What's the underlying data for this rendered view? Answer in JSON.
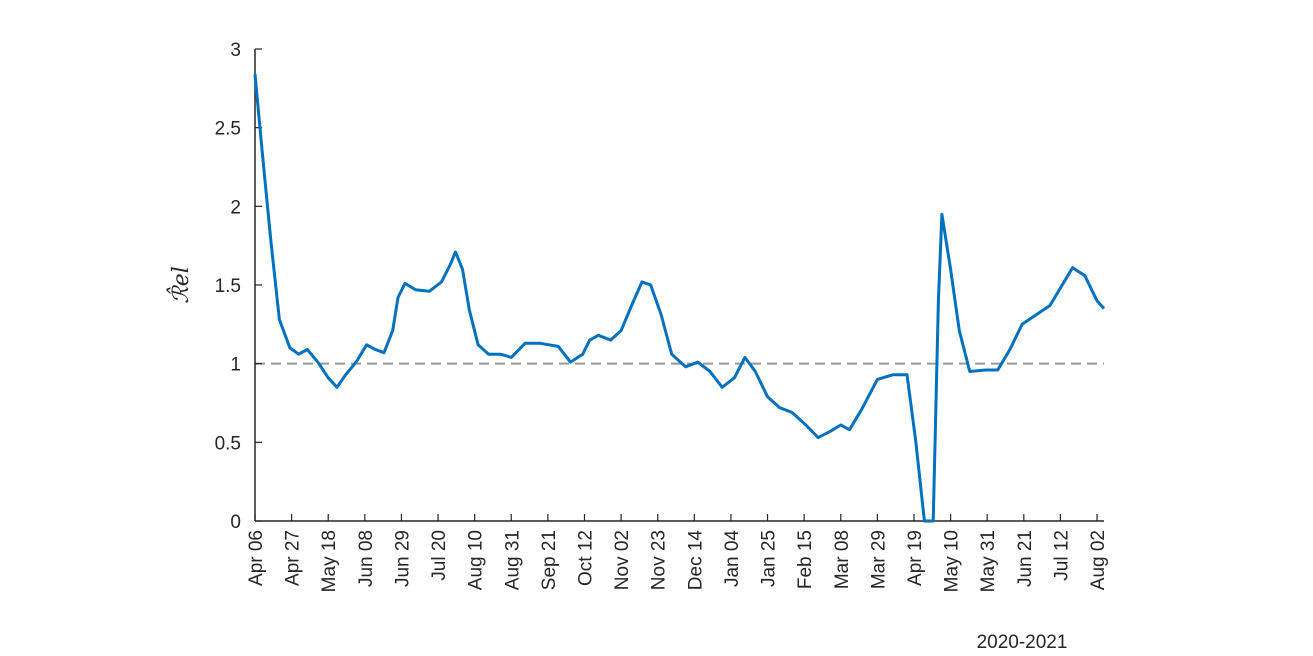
{
  "chart_data": {
    "type": "line",
    "ylabel": "ℛ̂el",
    "xlabel": "2020-2021",
    "x": [
      0,
      4,
      9,
      14,
      20,
      25,
      30,
      36,
      42,
      47,
      52,
      58,
      64,
      69,
      74,
      79,
      82,
      86,
      92,
      100,
      107,
      112,
      115,
      119,
      123,
      128,
      134,
      141,
      147,
      155,
      163,
      174,
      181,
      188,
      192,
      197,
      204,
      210,
      216,
      222,
      227,
      233,
      239,
      247,
      254,
      261,
      268,
      275,
      281,
      287,
      294,
      301,
      308,
      316,
      323,
      330,
      336,
      341,
      348,
      357,
      366,
      374,
      379,
      383,
      384,
      389,
      392,
      394,
      399,
      404,
      410,
      419,
      426,
      433,
      440,
      448,
      456,
      463,
      469,
      476,
      483,
      487
    ],
    "series": [
      {
        "color": "#0072bd",
        "values": [
          2.84,
          2.36,
          1.79,
          1.28,
          1.1,
          1.06,
          1.09,
          1.01,
          0.91,
          0.85,
          0.93,
          1.01,
          1.12,
          1.09,
          1.07,
          1.21,
          1.42,
          1.51,
          1.47,
          1.46,
          1.52,
          1.63,
          1.71,
          1.6,
          1.34,
          1.12,
          1.06,
          1.06,
          1.04,
          1.13,
          1.13,
          1.11,
          1.01,
          1.06,
          1.15,
          1.18,
          1.15,
          1.21,
          1.37,
          1.52,
          1.5,
          1.31,
          1.06,
          0.98,
          1.01,
          0.95,
          0.85,
          0.91,
          1.04,
          0.95,
          0.79,
          0.72,
          0.69,
          0.61,
          0.53,
          0.57,
          0.61,
          0.58,
          0.71,
          0.9,
          0.93,
          0.93,
          0.51,
          0.1,
          0,
          0,
          1.4,
          1.95,
          1.6,
          1.21,
          0.95,
          0.96,
          0.96,
          1.09,
          1.25,
          1.31,
          1.37,
          1.5,
          1.61,
          1.56,
          1.4,
          1.35
        ]
      }
    ],
    "xlim": [
      0,
      487
    ],
    "xticks": [
      {
        "value": 0,
        "label": "Apr 06"
      },
      {
        "value": 21,
        "label": "Apr 27"
      },
      {
        "value": 42,
        "label": "May 18"
      },
      {
        "value": 63,
        "label": "Jun 08"
      },
      {
        "value": 84,
        "label": "Jun 29"
      },
      {
        "value": 105,
        "label": "Jul 20"
      },
      {
        "value": 126,
        "label": "Aug 10"
      },
      {
        "value": 147,
        "label": "Aug 31"
      },
      {
        "value": 168,
        "label": "Sep 21"
      },
      {
        "value": 189,
        "label": "Oct 12"
      },
      {
        "value": 210,
        "label": "Nov 02"
      },
      {
        "value": 231,
        "label": "Nov 23"
      },
      {
        "value": 252,
        "label": "Dec 14"
      },
      {
        "value": 273,
        "label": "Jan 04"
      },
      {
        "value": 294,
        "label": "Jan 25"
      },
      {
        "value": 315,
        "label": "Feb 15"
      },
      {
        "value": 336,
        "label": "Mar 08"
      },
      {
        "value": 357,
        "label": "Mar 29"
      },
      {
        "value": 378,
        "label": "Apr 19"
      },
      {
        "value": 399,
        "label": "May 10"
      },
      {
        "value": 420,
        "label": "May 31"
      },
      {
        "value": 441,
        "label": "Jun 21"
      },
      {
        "value": 462,
        "label": "Jul 12"
      },
      {
        "value": 483,
        "label": "Aug 02"
      }
    ],
    "ylim": [
      0,
      3
    ],
    "yticks": [
      0,
      0.5,
      1,
      1.5,
      2,
      2.5,
      3
    ],
    "reference_line": {
      "value": 1,
      "color": "#999999"
    }
  }
}
